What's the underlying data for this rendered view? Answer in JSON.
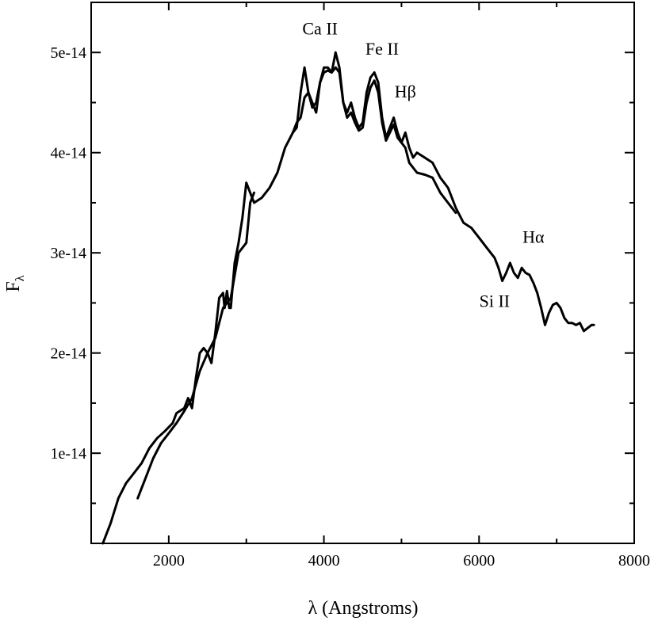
{
  "chart_data": {
    "type": "line",
    "title": "",
    "xlabel": "λ (Angstroms)",
    "ylabel_main": "F",
    "ylabel_sub": "λ",
    "xlim": [
      1000,
      8000
    ],
    "ylim": [
      1e-15,
      5.5e-14
    ],
    "xticks": [
      2000,
      4000,
      6000,
      8000
    ],
    "xtick_labels": [
      "2000",
      "4000",
      "6000",
      "8000"
    ],
    "yticks": [
      1e-14,
      2e-14,
      3e-14,
      4e-14,
      5e-14
    ],
    "ytick_labels": [
      "1e-14",
      "2e-14",
      "3e-14",
      "4e-14",
      "5e-14"
    ],
    "grid": false,
    "annotations": [
      {
        "text": "Ca II",
        "x": 3950,
        "y": 5.18e-14
      },
      {
        "text": "Fe II",
        "x": 4750,
        "y": 4.98e-14
      },
      {
        "text": "Hβ",
        "x": 5050,
        "y": 4.55e-14
      },
      {
        "text": "Hα",
        "x": 6700,
        "y": 3.1e-14
      },
      {
        "text": "Si II",
        "x": 6200,
        "y": 2.46e-14
      }
    ],
    "series": [
      {
        "x": [
          1150,
          1250,
          1350,
          1450,
          1550,
          1650,
          1750,
          1850,
          1950,
          2050,
          2100,
          2200,
          2250,
          2300,
          2350,
          2400,
          2450,
          2500,
          2550,
          2600,
          2650,
          2700,
          2720,
          2750,
          2780,
          2800,
          2850,
          2900,
          2950,
          3000,
          3050,
          3100,
          3200,
          3300,
          3400,
          3500,
          3600,
          3650,
          3700,
          3750,
          3800,
          3850,
          3900,
          3950,
          4000,
          4050,
          4100,
          4150,
          4200,
          4250,
          4300,
          4350,
          4400,
          4450,
          4500,
          4550,
          4600,
          4650,
          4700,
          4750,
          4800,
          4850,
          4900,
          4950,
          5000,
          5050,
          5100,
          5150,
          5200,
          5300,
          5400,
          5500,
          5600,
          5650,
          5700,
          5800,
          5900,
          6000,
          6100,
          6200,
          6250,
          6300,
          6350,
          6400,
          6450,
          6500,
          6550,
          6600,
          6650,
          6700,
          6750,
          6800,
          6850,
          6900,
          6950,
          7000,
          7050,
          7100,
          7150,
          7200,
          7250,
          7300,
          7350,
          7400,
          7450,
          7480
        ],
        "values": [
          1e-15,
          3e-15,
          5.5e-15,
          7e-15,
          8e-15,
          9e-15,
          1.05e-14,
          1.15e-14,
          1.22e-14,
          1.3e-14,
          1.4e-14,
          1.45e-14,
          1.55e-14,
          1.45e-14,
          1.75e-14,
          2e-14,
          2.05e-14,
          2e-14,
          1.9e-14,
          2.2e-14,
          2.55e-14,
          2.6e-14,
          2.45e-14,
          2.62e-14,
          2.45e-14,
          2.45e-14,
          2.9e-14,
          3.1e-14,
          3.35e-14,
          3.7e-14,
          3.6e-14,
          3.5e-14,
          3.55e-14,
          3.65e-14,
          3.8e-14,
          4.05e-14,
          4.2e-14,
          4.25e-14,
          4.6e-14,
          4.85e-14,
          4.6e-14,
          4.5e-14,
          4.4e-14,
          4.7e-14,
          4.85e-14,
          4.85e-14,
          4.8e-14,
          5e-14,
          4.85e-14,
          4.5e-14,
          4.4e-14,
          4.5e-14,
          4.35e-14,
          4.25e-14,
          4.3e-14,
          4.6e-14,
          4.75e-14,
          4.8e-14,
          4.7e-14,
          4.35e-14,
          4.15e-14,
          4.25e-14,
          4.35e-14,
          4.2e-14,
          4.1e-14,
          4.2e-14,
          4.05e-14,
          3.95e-14,
          4e-14,
          3.95e-14,
          3.9e-14,
          3.75e-14,
          3.65e-14,
          3.55e-14,
          3.45e-14,
          3.3e-14,
          3.25e-14,
          3.15e-14,
          3.05e-14,
          2.95e-14,
          2.85e-14,
          2.72e-14,
          2.8e-14,
          2.9e-14,
          2.8e-14,
          2.75e-14,
          2.85e-14,
          2.8e-14,
          2.78e-14,
          2.7e-14,
          2.6e-14,
          2.45e-14,
          2.28e-14,
          2.4e-14,
          2.48e-14,
          2.5e-14,
          2.45e-14,
          2.35e-14,
          2.3e-14,
          2.3e-14,
          2.28e-14,
          2.3e-14,
          2.22e-14,
          2.25e-14,
          2.28e-14,
          2.28e-14
        ]
      },
      {
        "x": [
          1600,
          1700,
          1800,
          1900,
          2000,
          2100,
          2200,
          2300,
          2400,
          2500,
          2600,
          2700,
          2800,
          2900,
          3000,
          3050,
          3100
        ],
        "values": [
          5.5e-15,
          7.5e-15,
          9.5e-15,
          1.1e-14,
          1.2e-14,
          1.3e-14,
          1.42e-14,
          1.55e-14,
          1.82e-14,
          2e-14,
          2.15e-14,
          2.45e-14,
          2.55e-14,
          3e-14,
          3.1e-14,
          3.5e-14,
          3.6e-14
        ]
      },
      {
        "x": [
          3600,
          3650,
          3700,
          3750,
          3800,
          3850,
          3900,
          3950,
          4000,
          4050,
          4100,
          4150,
          4200,
          4250,
          4300,
          4350,
          4400,
          4450,
          4500,
          4550,
          4600,
          4650,
          4700,
          4750,
          4800,
          4850,
          4900,
          4950,
          5000,
          5050,
          5100,
          5200,
          5300,
          5400,
          5500,
          5600,
          5650,
          5700
        ],
        "values": [
          4.2e-14,
          4.3e-14,
          4.35e-14,
          4.55e-14,
          4.6e-14,
          4.45e-14,
          4.5e-14,
          4.7e-14,
          4.8e-14,
          4.82e-14,
          4.8e-14,
          4.85e-14,
          4.8e-14,
          4.5e-14,
          4.35e-14,
          4.4e-14,
          4.3e-14,
          4.22e-14,
          4.25e-14,
          4.5e-14,
          4.65e-14,
          4.72e-14,
          4.6e-14,
          4.3e-14,
          4.12e-14,
          4.2e-14,
          4.28e-14,
          4.15e-14,
          4.1e-14,
          4.05e-14,
          3.9e-14,
          3.8e-14,
          3.78e-14,
          3.75e-14,
          3.6e-14,
          3.5e-14,
          3.45e-14,
          3.4e-14
        ]
      }
    ]
  }
}
